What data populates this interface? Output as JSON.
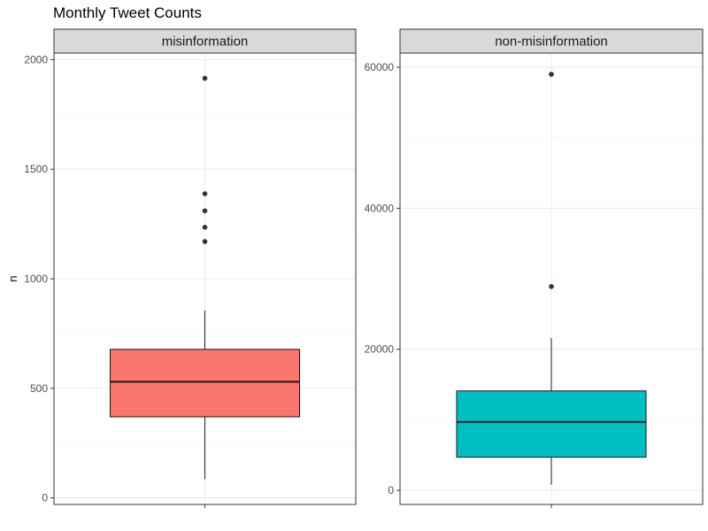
{
  "chart_data": {
    "type": "boxplot",
    "title": "Monthly Tweet Counts",
    "ylabel": "n",
    "xlabel": "",
    "grid": true,
    "panels": [
      {
        "strip_label": "misinformation",
        "fill": "#F8766D",
        "ylim": [
          -30,
          2030
        ],
        "yticks": [
          0,
          500,
          1000,
          1500,
          2000
        ],
        "ytick_labels": [
          "0",
          "500",
          "1000",
          "1500",
          "2000"
        ],
        "box": {
          "whisker_low": 85,
          "q1": 370,
          "median": 530,
          "q3": 678,
          "whisker_high": 855
        },
        "outliers": [
          1915,
          1388,
          1310,
          1235,
          1170
        ]
      },
      {
        "strip_label": "non-misinformation",
        "fill": "#00BFC4",
        "ylim": [
          -2000,
          62000
        ],
        "yticks": [
          0,
          20000,
          40000,
          60000
        ],
        "ytick_labels": [
          "0",
          "20000",
          "40000",
          "60000"
        ],
        "box": {
          "whisker_low": 800,
          "q1": 4700,
          "median": 9700,
          "q3": 14100,
          "whisker_high": 21600
        },
        "outliers": [
          59000,
          28900
        ]
      }
    ]
  }
}
